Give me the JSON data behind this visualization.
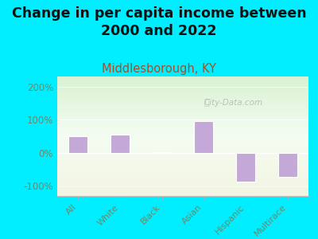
{
  "title": "Change in per capita income between\n2000 and 2022",
  "subtitle": "Middlesborough, KY",
  "categories": [
    "All",
    "White",
    "Black",
    "Asian",
    "Hispanic",
    "Multirace"
  ],
  "values": [
    50,
    55,
    2,
    95,
    -87,
    -72
  ],
  "bar_color": "#c4a8d8",
  "bar_edgecolor": "white",
  "background_outer": "#00eeff",
  "ylim": [
    -130,
    230
  ],
  "yticks": [
    -100,
    0,
    100,
    200
  ],
  "ytick_labels": [
    "-100%",
    "0%",
    "100%",
    "200%"
  ],
  "title_fontsize": 12.5,
  "subtitle_fontsize": 10.5,
  "subtitle_color": "#a0522d",
  "tick_color": "#6a8a6a",
  "watermark": "City-Data.com",
  "gradient_top": "#d8efd0",
  "gradient_bottom": "#f0f0d8"
}
